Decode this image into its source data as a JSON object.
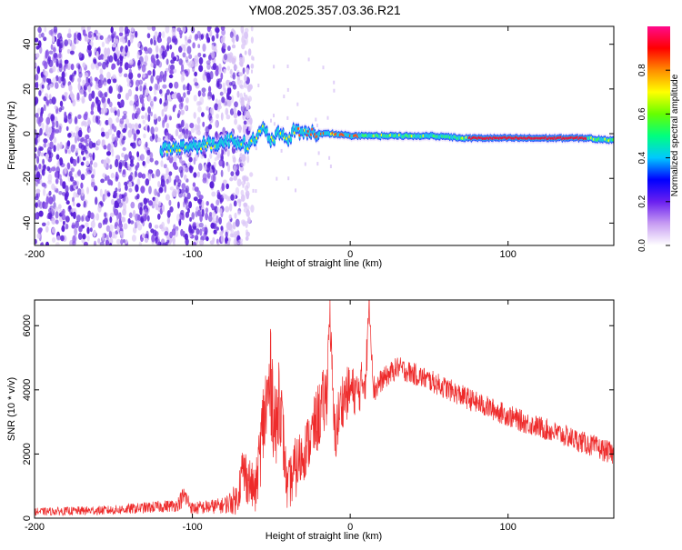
{
  "title": "YM08.2025.357.03.36.R21",
  "colors": {
    "snr_line": "#ee2b2b",
    "ridge_core": "#e8163a",
    "noise_dark": "#5a1fd8",
    "noise_light": "#d9c4f6"
  },
  "chart_data": [
    {
      "type": "heatmap",
      "title": "YM08.2025.357.03.36.R21",
      "xlabel": "Height of straight line (km)",
      "ylabel": "Frequency (Hz)",
      "xlim": [
        -200,
        167
      ],
      "ylim": [
        -50,
        48
      ],
      "xticks": [
        -200,
        -100,
        0,
        100
      ],
      "yticks": [
        -40,
        -20,
        0,
        20,
        40
      ],
      "noise_region_x": [
        -200,
        -70
      ],
      "ridge": {
        "x": [
          -120,
          -80,
          -75,
          -70,
          -65,
          -60,
          -55,
          -50,
          -45,
          -40,
          -35,
          -30,
          -25,
          -20,
          -10,
          0,
          20,
          50,
          75,
          100,
          130,
          150,
          167
        ],
        "y": [
          -7,
          -4,
          -2,
          -4,
          -5,
          -2,
          2,
          -3,
          0,
          -3,
          2,
          0,
          1,
          0,
          0,
          -1,
          -1,
          -1,
          -2,
          -2,
          -2,
          -2,
          -3
        ]
      },
      "colorbar": {
        "label": "Normalized spectral amplitude",
        "range": [
          0.0,
          1.0
        ],
        "ticks": [
          0.0,
          0.2,
          0.4,
          0.6,
          0.8
        ],
        "colors": [
          "#ffffff",
          "#c79cf2",
          "#6a1ff0",
          "#0000ff",
          "#00c8ff",
          "#00ff7f",
          "#66ff00",
          "#ffff00",
          "#ff8c00",
          "#ff0000",
          "#ff0a8c"
        ]
      }
    },
    {
      "type": "line",
      "xlabel": "Height of straight line (km)",
      "ylabel": "SNR (10 * v/v)",
      "xlim": [
        -200,
        167
      ],
      "ylim": [
        0,
        6800
      ],
      "xticks": [
        -200,
        -100,
        0,
        100
      ],
      "yticks": [
        0,
        2000,
        4000,
        6000
      ],
      "series": [
        {
          "name": "SNR",
          "x": [
            -200,
            -150,
            -110,
            -105,
            -100,
            -80,
            -72,
            -68,
            -60,
            -55,
            -50,
            -47,
            -45,
            -40,
            -35,
            -30,
            -25,
            -20,
            -15,
            -13,
            -10,
            -5,
            0,
            5,
            10,
            12,
            15,
            20,
            30,
            50,
            80,
            110,
            140,
            167
          ],
          "y": [
            200,
            250,
            400,
            700,
            300,
            400,
            600,
            1500,
            800,
            3000,
            4300,
            2500,
            4100,
            900,
            1500,
            2000,
            2500,
            3200,
            3800,
            6500,
            2500,
            3700,
            4000,
            3900,
            4500,
            6700,
            4000,
            4300,
            4700,
            4300,
            3600,
            3000,
            2500,
            2000
          ],
          "noise_amplitude": [
            120,
            150,
            200,
            350,
            200,
            250,
            500,
            900,
            700,
            1500,
            1800,
            1500,
            1500,
            700,
            1000,
            900,
            900,
            1100,
            1100,
            600,
            1000,
            900,
            800,
            700,
            800,
            400,
            500,
            350,
            350,
            350,
            350,
            350,
            350,
            350
          ]
        }
      ]
    }
  ]
}
